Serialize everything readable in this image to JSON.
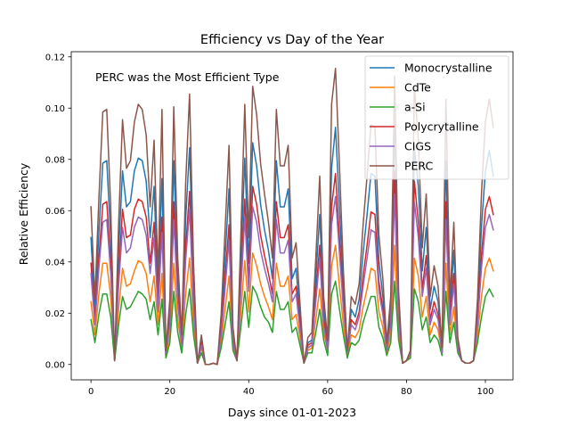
{
  "chart_data": {
    "type": "line",
    "title": "Efficiency vs Day of the Year",
    "xlabel": "Days since 01-01-2023",
    "ylabel": "Relative Efficiency",
    "annotation": "PERC was the Most Efficient Type",
    "xlim": [
      -5,
      107
    ],
    "ylim": [
      -0.006,
      0.122
    ],
    "xticks": [
      0,
      20,
      40,
      60,
      80,
      100
    ],
    "yticks": [
      0.0,
      0.02,
      0.04,
      0.06,
      0.08,
      0.1,
      0.12
    ],
    "ytick_labels": [
      "0.00",
      "0.02",
      "0.04",
      "0.06",
      "0.08",
      "0.10",
      "0.12"
    ],
    "grid": false,
    "legend_position": "upper right",
    "x": [
      0,
      1,
      2,
      3,
      4,
      5,
      6,
      7,
      8,
      9,
      10,
      11,
      12,
      13,
      14,
      15,
      16,
      17,
      18,
      19,
      20,
      21,
      22,
      23,
      24,
      25,
      26,
      27,
      28,
      29,
      30,
      31,
      32,
      33,
      34,
      35,
      36,
      37,
      38,
      39,
      40,
      41,
      42,
      43,
      44,
      45,
      46,
      47,
      48,
      49,
      50,
      51,
      52,
      53,
      54,
      55,
      56,
      57,
      58,
      59,
      60,
      61,
      62,
      63,
      64,
      65,
      66,
      67,
      68,
      69,
      70,
      71,
      72,
      73,
      74,
      75,
      76,
      77,
      78,
      79,
      80,
      81,
      82,
      83,
      84,
      85,
      86,
      87,
      88,
      89,
      90,
      91,
      92,
      93,
      94,
      95,
      96,
      97,
      98,
      99,
      100,
      101,
      102
    ],
    "series": [
      {
        "name": "Monocrystalline",
        "color": "#1f77b4",
        "values": [
          0.0495,
          0.0205,
          0.0515,
          0.0785,
          0.0795,
          0.0495,
          0.0015,
          0.0435,
          0.0755,
          0.0615,
          0.0635,
          0.0755,
          0.0805,
          0.0795,
          0.0715,
          0.0495,
          0.0695,
          0.0275,
          0.0725,
          0.0045,
          0.0205,
          0.0795,
          0.0335,
          0.0095,
          0.0565,
          0.0845,
          0.0315,
          0.0005,
          0.0095,
          0.0,
          0.0,
          0.0005,
          0.0,
          0.0155,
          0.0415,
          0.0685,
          0.0115,
          0.0015,
          0.0405,
          0.0805,
          0.0395,
          0.0865,
          0.0775,
          0.0625,
          0.0525,
          0.0445,
          0.0335,
          0.0795,
          0.0615,
          0.0615,
          0.0685,
          0.0335,
          0.0375,
          0.0185,
          0.0005,
          0.0085,
          0.0095,
          0.0335,
          0.0585,
          0.0215,
          0.0075,
          0.0765,
          0.0925,
          0.0615,
          0.0295,
          0.0045,
          0.0215,
          0.0185,
          0.0255,
          0.0435,
          0.0585,
          0.0745,
          0.0735,
          0.0405,
          0.0265,
          0.0065,
          0.0215,
          0.0945,
          0.0225,
          0.0005,
          0.0015,
          0.0045,
          0.0845,
          0.0695,
          0.0365,
          0.0535,
          0.0215,
          0.0305,
          0.0245,
          0.0055,
          0.0795,
          0.0205,
          0.0445,
          0.0085,
          0.0015,
          0.0005,
          0.0005,
          0.0015,
          0.0205,
          0.0535,
          0.0755,
          0.0835,
          0.0735
        ]
      },
      {
        "name": "CdTe",
        "color": "#ff7f0e",
        "values": [
          0.0245,
          0.0115,
          0.0275,
          0.0395,
          0.0395,
          0.0265,
          0.0015,
          0.0215,
          0.0375,
          0.0305,
          0.0315,
          0.0365,
          0.0405,
          0.0395,
          0.0355,
          0.0245,
          0.0345,
          0.0155,
          0.0355,
          0.0035,
          0.0115,
          0.0395,
          0.0175,
          0.0065,
          0.0275,
          0.0415,
          0.0165,
          0.0005,
          0.0065,
          0.0,
          0.0,
          0.0005,
          0.0,
          0.0085,
          0.0215,
          0.0345,
          0.0075,
          0.0015,
          0.0205,
          0.0405,
          0.0205,
          0.0435,
          0.0385,
          0.0315,
          0.0265,
          0.0225,
          0.0175,
          0.0395,
          0.0305,
          0.0305,
          0.0345,
          0.0175,
          0.0195,
          0.0105,
          0.0005,
          0.0055,
          0.0065,
          0.0175,
          0.0295,
          0.0125,
          0.0055,
          0.0385,
          0.0465,
          0.0305,
          0.0155,
          0.0035,
          0.0115,
          0.0105,
          0.0135,
          0.0225,
          0.0295,
          0.0375,
          0.0365,
          0.0205,
          0.0145,
          0.0045,
          0.0115,
          0.0465,
          0.0125,
          0.0005,
          0.0015,
          0.0035,
          0.0415,
          0.0345,
          0.0185,
          0.0265,
          0.0115,
          0.0165,
          0.0135,
          0.0045,
          0.0395,
          0.0115,
          0.0225,
          0.0055,
          0.0015,
          0.0005,
          0.0005,
          0.0015,
          0.0115,
          0.0265,
          0.0375,
          0.0415,
          0.0365
        ]
      },
      {
        "name": "a-Si",
        "color": "#2ca02c",
        "values": [
          0.0175,
          0.0085,
          0.0195,
          0.0275,
          0.0275,
          0.0185,
          0.0015,
          0.0155,
          0.0265,
          0.0215,
          0.0225,
          0.0255,
          0.0285,
          0.0275,
          0.0255,
          0.0175,
          0.0245,
          0.0115,
          0.0255,
          0.0025,
          0.0085,
          0.0285,
          0.0125,
          0.0045,
          0.0195,
          0.0295,
          0.0115,
          0.0005,
          0.0045,
          0.0,
          0.0,
          0.0005,
          0.0,
          0.0065,
          0.0155,
          0.0245,
          0.0055,
          0.0015,
          0.0145,
          0.0285,
          0.0145,
          0.0305,
          0.0275,
          0.0225,
          0.0185,
          0.0165,
          0.0125,
          0.0285,
          0.0215,
          0.0215,
          0.0245,
          0.0125,
          0.0145,
          0.0075,
          0.0005,
          0.0045,
          0.0045,
          0.0125,
          0.0215,
          0.0095,
          0.0035,
          0.0275,
          0.0325,
          0.0215,
          0.0115,
          0.0025,
          0.0085,
          0.0075,
          0.0095,
          0.0165,
          0.0215,
          0.0265,
          0.0265,
          0.0145,
          0.0105,
          0.0035,
          0.0085,
          0.0325,
          0.0095,
          0.0005,
          0.0015,
          0.0025,
          0.0295,
          0.0245,
          0.0135,
          0.0185,
          0.0085,
          0.0115,
          0.0095,
          0.0035,
          0.0285,
          0.0085,
          0.0165,
          0.0045,
          0.0015,
          0.0005,
          0.0005,
          0.0015,
          0.0085,
          0.0185,
          0.0265,
          0.0295,
          0.0265
        ]
      },
      {
        "name": "Polycrytalline",
        "color": "#d62728",
        "values": [
          0.0395,
          0.0175,
          0.0415,
          0.0625,
          0.0635,
          0.0395,
          0.0015,
          0.0345,
          0.0605,
          0.0495,
          0.0505,
          0.0605,
          0.0645,
          0.0635,
          0.0575,
          0.0395,
          0.0555,
          0.0225,
          0.0575,
          0.0045,
          0.0175,
          0.0635,
          0.0275,
          0.0085,
          0.0455,
          0.0675,
          0.0255,
          0.0005,
          0.0085,
          0.0,
          0.0,
          0.0005,
          0.0,
          0.0135,
          0.0335,
          0.0545,
          0.0095,
          0.0015,
          0.0325,
          0.0645,
          0.0315,
          0.0695,
          0.0625,
          0.0505,
          0.0425,
          0.0355,
          0.0275,
          0.0635,
          0.0495,
          0.0495,
          0.0545,
          0.0275,
          0.0305,
          0.0155,
          0.0005,
          0.0075,
          0.0085,
          0.0275,
          0.0465,
          0.0175,
          0.0065,
          0.0615,
          0.0745,
          0.0495,
          0.0235,
          0.0045,
          0.0175,
          0.0155,
          0.0205,
          0.0345,
          0.0465,
          0.0595,
          0.0585,
          0.0325,
          0.0215,
          0.0055,
          0.0175,
          0.0755,
          0.0185,
          0.0005,
          0.0015,
          0.0045,
          0.0715,
          0.0555,
          0.0295,
          0.0425,
          0.0175,
          0.0245,
          0.0195,
          0.0055,
          0.0635,
          0.0175,
          0.0355,
          0.0075,
          0.0015,
          0.0005,
          0.0005,
          0.0015,
          0.0175,
          0.0425,
          0.0605,
          0.0655,
          0.0585
        ]
      },
      {
        "name": "CIGS",
        "color": "#9467bd",
        "values": [
          0.0355,
          0.0155,
          0.0375,
          0.0555,
          0.0565,
          0.0355,
          0.0015,
          0.0305,
          0.0535,
          0.0435,
          0.0455,
          0.0535,
          0.0575,
          0.0565,
          0.0505,
          0.0355,
          0.0495,
          0.0205,
          0.0515,
          0.0045,
          0.0155,
          0.0565,
          0.0245,
          0.0075,
          0.0405,
          0.0605,
          0.0225,
          0.0005,
          0.0075,
          0.0,
          0.0,
          0.0005,
          0.0,
          0.0115,
          0.0295,
          0.0485,
          0.0085,
          0.0015,
          0.0285,
          0.0575,
          0.0285,
          0.0615,
          0.0555,
          0.0445,
          0.0375,
          0.0315,
          0.0245,
          0.0565,
          0.0435,
          0.0435,
          0.0485,
          0.0245,
          0.0275,
          0.0135,
          0.0005,
          0.0065,
          0.0075,
          0.0245,
          0.0415,
          0.0155,
          0.0055,
          0.0545,
          0.0655,
          0.0435,
          0.0215,
          0.0045,
          0.0155,
          0.0135,
          0.0185,
          0.0305,
          0.0415,
          0.0525,
          0.0515,
          0.0285,
          0.0195,
          0.0055,
          0.0155,
          0.0665,
          0.0165,
          0.0005,
          0.0015,
          0.0045,
          0.0635,
          0.0495,
          0.0265,
          0.0375,
          0.0155,
          0.0215,
          0.0175,
          0.0045,
          0.0565,
          0.0155,
          0.0315,
          0.0065,
          0.0015,
          0.0005,
          0.0005,
          0.0015,
          0.0155,
          0.0375,
          0.0535,
          0.0585,
          0.0525
        ]
      },
      {
        "name": "PERC",
        "color": "#8c564b",
        "values": [
          0.0615,
          0.0255,
          0.0645,
          0.0985,
          0.0995,
          0.0615,
          0.0015,
          0.0545,
          0.0955,
          0.0765,
          0.0795,
          0.0945,
          0.1015,
          0.0995,
          0.0895,
          0.0615,
          0.0875,
          0.0345,
          0.0995,
          0.0055,
          0.0255,
          0.1005,
          0.0415,
          0.0115,
          0.0705,
          0.1055,
          0.0395,
          0.0005,
          0.0115,
          0.0,
          0.0,
          0.0005,
          0.0,
          0.0195,
          0.0525,
          0.0855,
          0.0145,
          0.0015,
          0.0505,
          0.1015,
          0.0495,
          0.1085,
          0.0975,
          0.0785,
          0.0665,
          0.0555,
          0.0415,
          0.0995,
          0.0775,
          0.0775,
          0.0855,
          0.0415,
          0.0475,
          0.0235,
          0.0005,
          0.0105,
          0.0125,
          0.0415,
          0.0735,
          0.0265,
          0.0095,
          0.1015,
          0.1155,
          0.0775,
          0.0365,
          0.0055,
          0.0265,
          0.0235,
          0.0315,
          0.0545,
          0.0735,
          0.0935,
          0.0925,
          0.0505,
          0.0335,
          0.0085,
          0.0265,
          0.1125,
          0.0285,
          0.0005,
          0.0015,
          0.0055,
          0.1085,
          0.0875,
          0.0455,
          0.0665,
          0.0265,
          0.0385,
          0.0305,
          0.0065,
          0.1035,
          0.0255,
          0.0555,
          0.0105,
          0.0015,
          0.0005,
          0.0005,
          0.0015,
          0.0255,
          0.0665,
          0.0945,
          0.1035,
          0.0925
        ]
      }
    ]
  }
}
